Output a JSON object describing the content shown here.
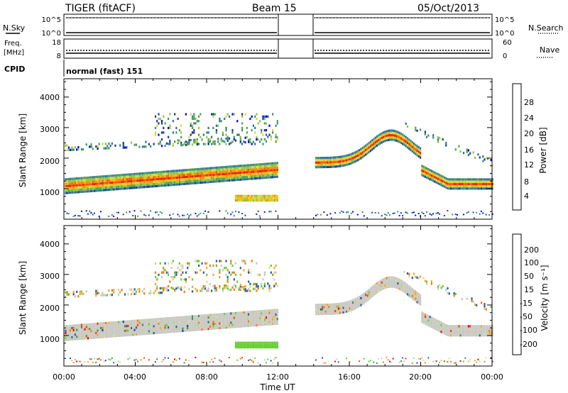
{
  "header": {
    "title": "TIGER (fitACF)",
    "beam": "Beam 15",
    "date": "05/Oct/2013"
  },
  "nsky_panel": {
    "left_label": "N.Sky",
    "right_label": "N.Search",
    "left_ticks": [
      "10^5",
      "10^0"
    ],
    "right_ticks": [
      "10^5",
      "10^0"
    ]
  },
  "freq_panel": {
    "left_label_line1": "Freq.",
    "left_label_line2": "[MHz]",
    "right_label": "Nave",
    "left_ticks": [
      "18",
      "8"
    ],
    "right_ticks": [
      "60",
      "0"
    ]
  },
  "cpid": {
    "label": "CPID",
    "value": "normal (fast) 151"
  },
  "colors": {
    "power": [
      "#0000ff",
      "#1e3c8c",
      "#2f6f9f",
      "#3d8f77",
      "#4fa64a",
      "#8dc63f",
      "#d8d83a",
      "#f5b700",
      "#f58a00",
      "#f05a00",
      "#e82000"
    ],
    "velocity": [
      "#e80000",
      "#f04000",
      "#f57a00",
      "#f5a623",
      "#e8d39a",
      "#c8c8c0",
      "#a8d98a",
      "#66cc33",
      "#3a8f5a",
      "#2a5fa0",
      "#1f3cb0"
    ]
  },
  "chart_data": [
    {
      "type": "heatmap",
      "title": "Power",
      "xlabel": "",
      "ylabel": "Slant Range [km]",
      "x_ticks": [
        "00:00",
        "04:00",
        "08:00",
        "12:00",
        "16:00",
        "20:00",
        "00:00"
      ],
      "y_ticks": [
        "1000",
        "2000",
        "3000",
        "4000"
      ],
      "ylim": [
        0,
        4600
      ],
      "colorbar_label": "Power [dB]",
      "colorbar_ticks": [
        "4",
        "8",
        "12",
        "16",
        "20",
        "24",
        "28"
      ],
      "data_gap_hours": [
        12.0,
        14.0
      ]
    },
    {
      "type": "heatmap",
      "title": "Velocity",
      "xlabel": "Time UT",
      "ylabel": "Slant Range [km]",
      "x_ticks": [
        "00:00",
        "04:00",
        "08:00",
        "12:00",
        "16:00",
        "20:00",
        "00:00"
      ],
      "y_ticks": [
        "1000",
        "2000",
        "3000",
        "4000"
      ],
      "ylim": [
        0,
        4600
      ],
      "colorbar_label": "Velocity [m s⁻¹]",
      "colorbar_ticks": [
        "200",
        "100",
        "50",
        "15",
        "-15",
        "-50",
        "-100",
        "-200"
      ],
      "data_gap_hours": [
        12.0,
        14.0
      ]
    }
  ]
}
